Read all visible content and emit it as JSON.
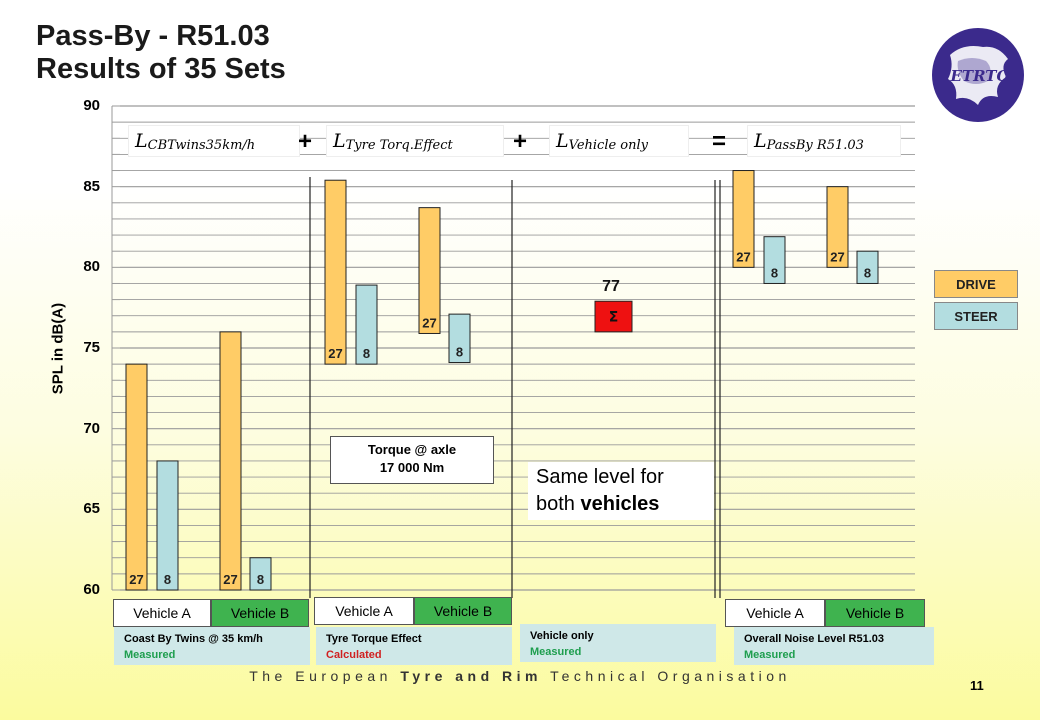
{
  "title_line1": "Pass-By - R51.03",
  "title_line2": "Results of 35 Sets",
  "logo_text": "ETRTO",
  "chart_data": {
    "type": "bar",
    "ylabel": "SPL in dB(A)",
    "ylim": [
      60,
      90
    ],
    "yticks": [
      "60",
      "65",
      "70",
      "75",
      "80",
      "85",
      "90"
    ],
    "series": [
      {
        "name": "DRIVE",
        "color": "#ffcc66"
      },
      {
        "name": "STEER",
        "color": "#b3dde0"
      }
    ],
    "bars": [
      {
        "group": "Coast By Twins @ 35 km/h",
        "vehicle": "Vehicle A",
        "series": "DRIVE",
        "bottom": 60,
        "top": 74,
        "label": "27"
      },
      {
        "group": "Coast By Twins @ 35 km/h",
        "vehicle": "Vehicle A",
        "series": "STEER",
        "bottom": 60,
        "top": 68,
        "label": "8"
      },
      {
        "group": "Coast By Twins @ 35 km/h",
        "vehicle": "Vehicle B",
        "series": "DRIVE",
        "bottom": 60,
        "top": 76,
        "label": "27"
      },
      {
        "group": "Coast By Twins @ 35 km/h",
        "vehicle": "Vehicle B",
        "series": "STEER",
        "bottom": 60,
        "top": 62,
        "label": "8"
      },
      {
        "group": "Tyre Torque Effect",
        "vehicle": "Vehicle A",
        "series": "DRIVE",
        "bottom": 74,
        "top": 85.4,
        "label": "27"
      },
      {
        "group": "Tyre Torque Effect",
        "vehicle": "Vehicle A",
        "series": "STEER",
        "bottom": 74,
        "top": 78.9,
        "label": "8"
      },
      {
        "group": "Tyre Torque Effect",
        "vehicle": "Vehicle B",
        "series": "DRIVE",
        "bottom": 75.9,
        "top": 83.7,
        "label": "27"
      },
      {
        "group": "Tyre Torque Effect",
        "vehicle": "Vehicle B",
        "series": "STEER",
        "bottom": 74.1,
        "top": 77.1,
        "label": "8"
      },
      {
        "group": "Overall Noise Level R51.03",
        "vehicle": "Vehicle A",
        "series": "DRIVE",
        "bottom": 80,
        "top": 86,
        "label": "27"
      },
      {
        "group": "Overall Noise Level R51.03",
        "vehicle": "Vehicle A",
        "series": "STEER",
        "bottom": 79,
        "top": 81.9,
        "label": "8"
      },
      {
        "group": "Overall Noise Level R51.03",
        "vehicle": "Vehicle B",
        "series": "DRIVE",
        "bottom": 80,
        "top": 85,
        "label": "27"
      },
      {
        "group": "Overall Noise Level R51.03",
        "vehicle": "Vehicle B",
        "series": "STEER",
        "bottom": 79,
        "top": 81,
        "label": "8"
      }
    ],
    "sigma": {
      "value": 77,
      "value_label": "77",
      "bottom": 76,
      "top": 77.9,
      "symbol": "Σ",
      "color": "#ee1111"
    }
  },
  "formula": {
    "term1_main": "L",
    "term1_sub": "CBTwins35km/h",
    "term2_main": "L",
    "term2_sub": "Tyre Torq.Effect",
    "term3_main": "L",
    "term3_sub": "Vehicle only",
    "term4_main": "L",
    "term4_sub": "PassBy R51.03",
    "plus1": "+",
    "plus2": "+",
    "equals": "="
  },
  "legend": {
    "drive": "DRIVE",
    "steer": "STEER"
  },
  "torque_box": {
    "line1": "Torque @ axle",
    "line2": "17 000 Nm"
  },
  "same_level": {
    "prefix": "Same level for",
    "line2a": "both ",
    "line2b": "vehicles"
  },
  "vehicle_buttons": {
    "g1a": "Vehicle A",
    "g1b": "Vehicle B",
    "g2a": "Vehicle A",
    "g2b": "Vehicle B",
    "g4a": "Vehicle A",
    "g4b": "Vehicle B"
  },
  "group_desc": {
    "g1_title": "Coast By  Twins @ 35 km/h",
    "g1_sub": "Measured",
    "g2_title": "Tyre Torque Effect",
    "g2_sub": "Calculated",
    "g3_title": "Vehicle only",
    "g3_sub": "Measured",
    "g4_title": "Overall  Noise Level  R51.03",
    "g4_sub": "Measured"
  },
  "footer": {
    "part1": "The European ",
    "part2": "Tyre and Rim",
    "part3": " Technical Organisation"
  },
  "page_number": "11"
}
